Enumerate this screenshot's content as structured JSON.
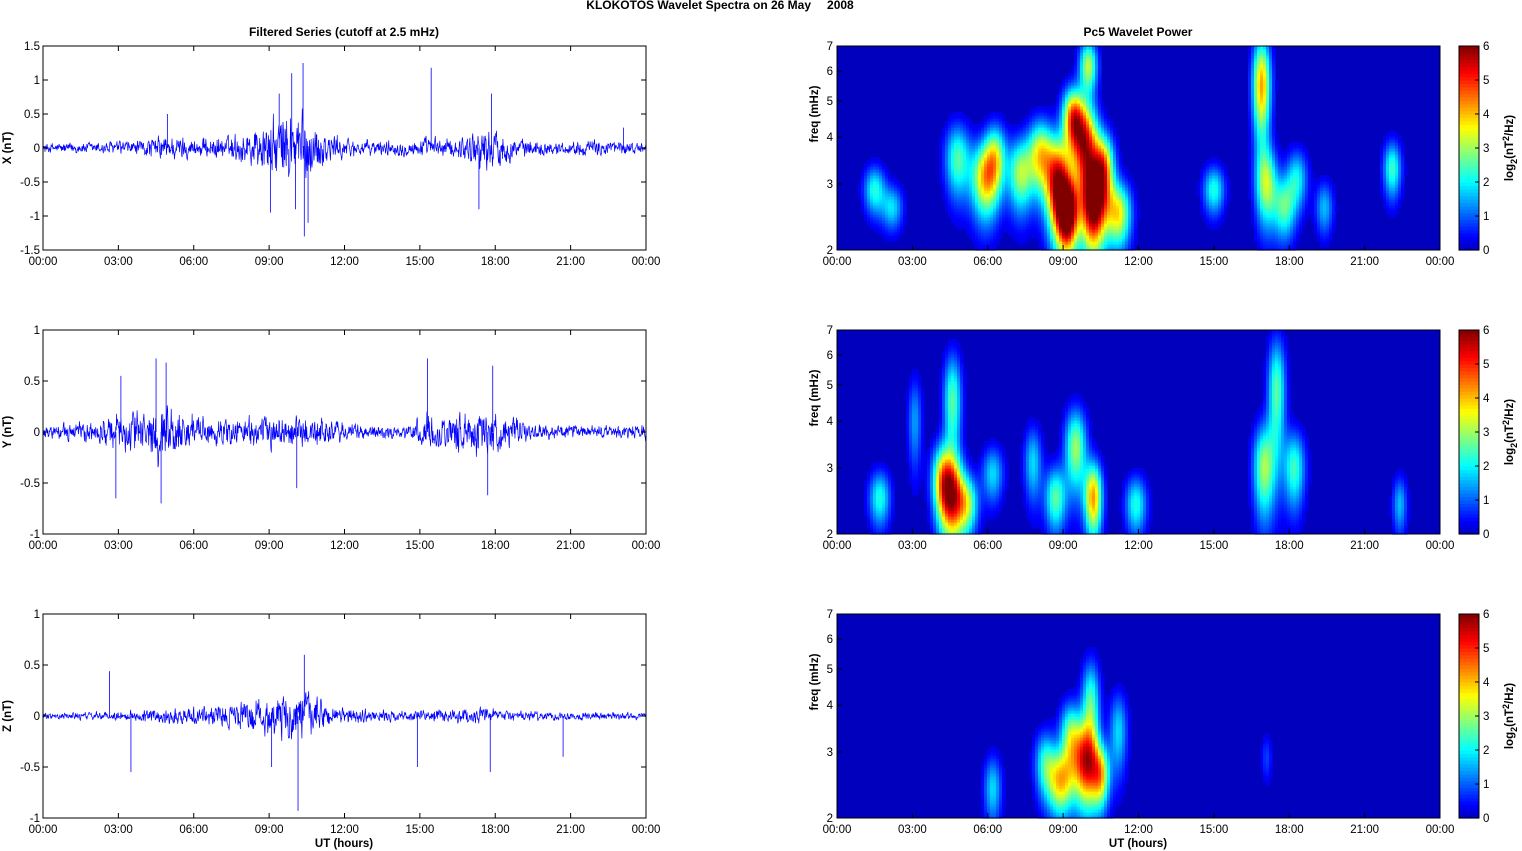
{
  "figure": {
    "title_station": "KLOKOTOS Wavelet Spectra on 26 May",
    "title_year": "2008",
    "left_title": "Filtered Series (cutoff at 2.5 mHz)",
    "right_title": "Pc5 Wavelet Power",
    "xlabel": "UT (hours)",
    "colorbar_label": "log2(nT2/Hz)",
    "colorbar_ticks": [
      "0",
      "1",
      "2",
      "3",
      "4",
      "5",
      "6"
    ],
    "freq_label": "freq (mHz)"
  },
  "chart_data": [
    {
      "type": "line",
      "name": "filtered-x",
      "ylabel": "X (nT)",
      "ylim": [
        -1.5,
        1.5
      ],
      "yticks": [
        "-1.5",
        "-1",
        "-0.5",
        "0",
        "0.5",
        "1",
        "1.5"
      ],
      "xticks": [
        "00:00",
        "03:00",
        "06:00",
        "09:00",
        "12:00",
        "15:00",
        "18:00",
        "21:00",
        "00:00"
      ],
      "xlim_hours": [
        0,
        24
      ],
      "color": "#0000ff",
      "envelope": [
        [
          0,
          0.12
        ],
        [
          2,
          0.15
        ],
        [
          4,
          0.2
        ],
        [
          5,
          0.32
        ],
        [
          6,
          0.22
        ],
        [
          7.5,
          0.3
        ],
        [
          8.5,
          0.55
        ],
        [
          9.3,
          0.8
        ],
        [
          10.2,
          1.0
        ],
        [
          10.8,
          0.6
        ],
        [
          11.5,
          0.35
        ],
        [
          12.5,
          0.18
        ],
        [
          14.5,
          0.18
        ],
        [
          15.5,
          0.25
        ],
        [
          16.5,
          0.22
        ],
        [
          17.3,
          0.5
        ],
        [
          18,
          0.45
        ],
        [
          19,
          0.2
        ],
        [
          20.5,
          0.15
        ],
        [
          22.5,
          0.2
        ],
        [
          24,
          0.1
        ]
      ],
      "spikes": [
        [
          9.4,
          0.8
        ],
        [
          9.9,
          1.1
        ],
        [
          10.35,
          1.25
        ],
        [
          10.4,
          -1.3
        ],
        [
          10.55,
          -1.1
        ],
        [
          15.45,
          1.18
        ],
        [
          17.85,
          0.8
        ],
        [
          17.35,
          -0.9
        ],
        [
          4.95,
          0.5
        ],
        [
          9.05,
          -0.95
        ],
        [
          10.05,
          -0.9
        ],
        [
          23.1,
          0.3
        ]
      ]
    },
    {
      "type": "line",
      "name": "filtered-y",
      "ylabel": "Y (nT)",
      "ylim": [
        -1,
        1
      ],
      "yticks": [
        "-1",
        "-0.5",
        "0",
        "0.5",
        "1"
      ],
      "xticks": [
        "00:00",
        "03:00",
        "06:00",
        "09:00",
        "12:00",
        "15:00",
        "18:00",
        "21:00",
        "00:00"
      ],
      "xlim_hours": [
        0,
        24
      ],
      "color": "#0000ff",
      "envelope": [
        [
          0,
          0.1
        ],
        [
          2,
          0.18
        ],
        [
          3,
          0.3
        ],
        [
          4,
          0.38
        ],
        [
          4.5,
          0.5
        ],
        [
          5.5,
          0.35
        ],
        [
          6.5,
          0.2
        ],
        [
          8.5,
          0.25
        ],
        [
          9.5,
          0.25
        ],
        [
          10.5,
          0.28
        ],
        [
          11.5,
          0.2
        ],
        [
          12.5,
          0.12
        ],
        [
          14.5,
          0.1
        ],
        [
          15.3,
          0.3
        ],
        [
          16,
          0.28
        ],
        [
          16.8,
          0.35
        ],
        [
          17.5,
          0.38
        ],
        [
          18.5,
          0.25
        ],
        [
          19.5,
          0.12
        ],
        [
          22,
          0.1
        ],
        [
          24,
          0.12
        ]
      ],
      "spikes": [
        [
          4.5,
          0.72
        ],
        [
          4.9,
          0.68
        ],
        [
          15.3,
          0.72
        ],
        [
          17.9,
          0.65
        ],
        [
          17.7,
          -0.62
        ],
        [
          4.7,
          -0.7
        ],
        [
          2.9,
          -0.65
        ],
        [
          3.1,
          0.55
        ],
        [
          10.1,
          -0.55
        ]
      ]
    },
    {
      "type": "line",
      "name": "filtered-z",
      "ylabel": "Z (nT)",
      "ylim": [
        -1,
        1
      ],
      "yticks": [
        "-1",
        "-0.5",
        "0",
        "0.5",
        "1"
      ],
      "xticks": [
        "00:00",
        "03:00",
        "06:00",
        "09:00",
        "12:00",
        "15:00",
        "18:00",
        "21:00",
        "00:00"
      ],
      "xlim_hours": [
        0,
        24
      ],
      "color": "#0000ff",
      "envelope": [
        [
          0,
          0.05
        ],
        [
          3,
          0.07
        ],
        [
          4,
          0.1
        ],
        [
          6,
          0.15
        ],
        [
          7.5,
          0.2
        ],
        [
          8.5,
          0.3
        ],
        [
          9.5,
          0.35
        ],
        [
          10.3,
          0.4
        ],
        [
          11,
          0.25
        ],
        [
          12,
          0.12
        ],
        [
          14,
          0.08
        ],
        [
          17,
          0.12
        ],
        [
          18,
          0.1
        ],
        [
          20,
          0.07
        ],
        [
          24,
          0.05
        ]
      ],
      "spikes": [
        [
          2.65,
          0.44
        ],
        [
          3.5,
          -0.55
        ],
        [
          10.15,
          -0.93
        ],
        [
          10.4,
          0.6
        ],
        [
          9.1,
          -0.5
        ],
        [
          14.9,
          -0.5
        ],
        [
          17.8,
          -0.55
        ],
        [
          20.7,
          -0.4
        ],
        [
          24,
          0.2
        ]
      ]
    },
    {
      "type": "heatmap",
      "name": "wavelet-x",
      "ylabel": "freq (mHz)",
      "yticks": [
        "2",
        "3",
        "4",
        "5",
        "6",
        "7"
      ],
      "ylim": [
        2,
        7
      ],
      "yscale": "log",
      "zlim": [
        0,
        6
      ],
      "colormap": "jet",
      "xticks": [
        "00:00",
        "03:00",
        "06:00",
        "09:00",
        "12:00",
        "15:00",
        "18:00",
        "21:00",
        "00:00"
      ],
      "blobs": [
        [
          1.5,
          2.9,
          0.3,
          0.3,
          2.2
        ],
        [
          2.2,
          2.6,
          0.3,
          0.25,
          1.8
        ],
        [
          4.8,
          3.5,
          0.35,
          0.55,
          2.5
        ],
        [
          5.9,
          3.1,
          0.4,
          0.5,
          3.8
        ],
        [
          6.3,
          3.6,
          0.3,
          0.5,
          2.6
        ],
        [
          7.3,
          3.2,
          0.35,
          0.5,
          3.0
        ],
        [
          8.1,
          3.6,
          0.35,
          0.55,
          3.5
        ],
        [
          8.8,
          3.0,
          0.35,
          0.6,
          5.5
        ],
        [
          9.2,
          2.5,
          0.3,
          0.4,
          5.8
        ],
        [
          9.4,
          4.5,
          0.3,
          0.6,
          4.5
        ],
        [
          9.9,
          3.8,
          0.35,
          0.7,
          5.0
        ],
        [
          10.2,
          2.6,
          0.35,
          0.5,
          5.6
        ],
        [
          10.6,
          3.3,
          0.3,
          0.5,
          4.2
        ],
        [
          11.2,
          2.5,
          0.35,
          0.35,
          3.6
        ],
        [
          10.0,
          6.2,
          0.25,
          0.7,
          3.2
        ],
        [
          15.0,
          2.9,
          0.3,
          0.3,
          2.2
        ],
        [
          16.9,
          5.5,
          0.25,
          1.2,
          4.2
        ],
        [
          17.1,
          3.0,
          0.3,
          0.5,
          3.0
        ],
        [
          17.8,
          2.6,
          0.3,
          0.35,
          2.4
        ],
        [
          18.3,
          3.1,
          0.3,
          0.4,
          2.0
        ],
        [
          19.4,
          2.6,
          0.25,
          0.3,
          1.6
        ],
        [
          22.1,
          3.3,
          0.25,
          0.4,
          2.4
        ]
      ]
    },
    {
      "type": "heatmap",
      "name": "wavelet-y",
      "ylabel": "freq (mHz)",
      "yticks": [
        "2",
        "3",
        "4",
        "5",
        "6",
        "7"
      ],
      "ylim": [
        2,
        7
      ],
      "yscale": "log",
      "zlim": [
        0,
        6
      ],
      "colormap": "jet",
      "xticks": [
        "00:00",
        "03:00",
        "06:00",
        "09:00",
        "12:00",
        "15:00",
        "18:00",
        "21:00",
        "00:00"
      ],
      "blobs": [
        [
          1.7,
          2.5,
          0.3,
          0.3,
          2.2
        ],
        [
          3.1,
          4.0,
          0.2,
          0.8,
          1.4
        ],
        [
          4.2,
          2.8,
          0.3,
          0.45,
          3.2
        ],
        [
          4.6,
          2.5,
          0.35,
          0.45,
          4.6
        ],
        [
          4.6,
          4.5,
          0.25,
          1.0,
          2.6
        ],
        [
          5.2,
          2.4,
          0.3,
          0.3,
          2.6
        ],
        [
          6.2,
          2.9,
          0.3,
          0.35,
          1.8
        ],
        [
          7.8,
          3.1,
          0.25,
          0.5,
          1.8
        ],
        [
          8.7,
          2.5,
          0.3,
          0.35,
          2.6
        ],
        [
          9.5,
          3.4,
          0.3,
          0.6,
          3.0
        ],
        [
          10.2,
          2.5,
          0.25,
          0.4,
          4.2
        ],
        [
          11.9,
          2.4,
          0.3,
          0.3,
          2.2
        ],
        [
          17.0,
          3.0,
          0.3,
          0.6,
          3.0
        ],
        [
          17.5,
          4.8,
          0.25,
          1.2,
          2.6
        ],
        [
          18.2,
          3.0,
          0.3,
          0.5,
          2.4
        ],
        [
          22.4,
          2.4,
          0.2,
          0.3,
          1.6
        ]
      ]
    },
    {
      "type": "heatmap",
      "name": "wavelet-z",
      "ylabel": "freq (mHz)",
      "yticks": [
        "2",
        "3",
        "4",
        "5",
        "6",
        "7"
      ],
      "ylim": [
        2,
        7
      ],
      "yscale": "log",
      "zlim": [
        0,
        6
      ],
      "colormap": "jet",
      "xticks": [
        "00:00",
        "03:00",
        "06:00",
        "09:00",
        "12:00",
        "15:00",
        "18:00",
        "21:00",
        "00:00"
      ],
      "blobs": [
        [
          6.2,
          2.4,
          0.25,
          0.35,
          1.8
        ],
        [
          8.3,
          2.8,
          0.3,
          0.4,
          2.2
        ],
        [
          8.9,
          2.5,
          0.35,
          0.35,
          3.6
        ],
        [
          9.3,
          3.3,
          0.3,
          0.5,
          2.8
        ],
        [
          9.9,
          2.8,
          0.35,
          0.5,
          4.8
        ],
        [
          10.1,
          4.0,
          0.25,
          0.8,
          2.6
        ],
        [
          10.5,
          2.6,
          0.25,
          0.35,
          3.4
        ],
        [
          11.2,
          3.4,
          0.25,
          0.6,
          1.8
        ],
        [
          17.1,
          2.9,
          0.15,
          0.3,
          0.8
        ]
      ]
    }
  ]
}
